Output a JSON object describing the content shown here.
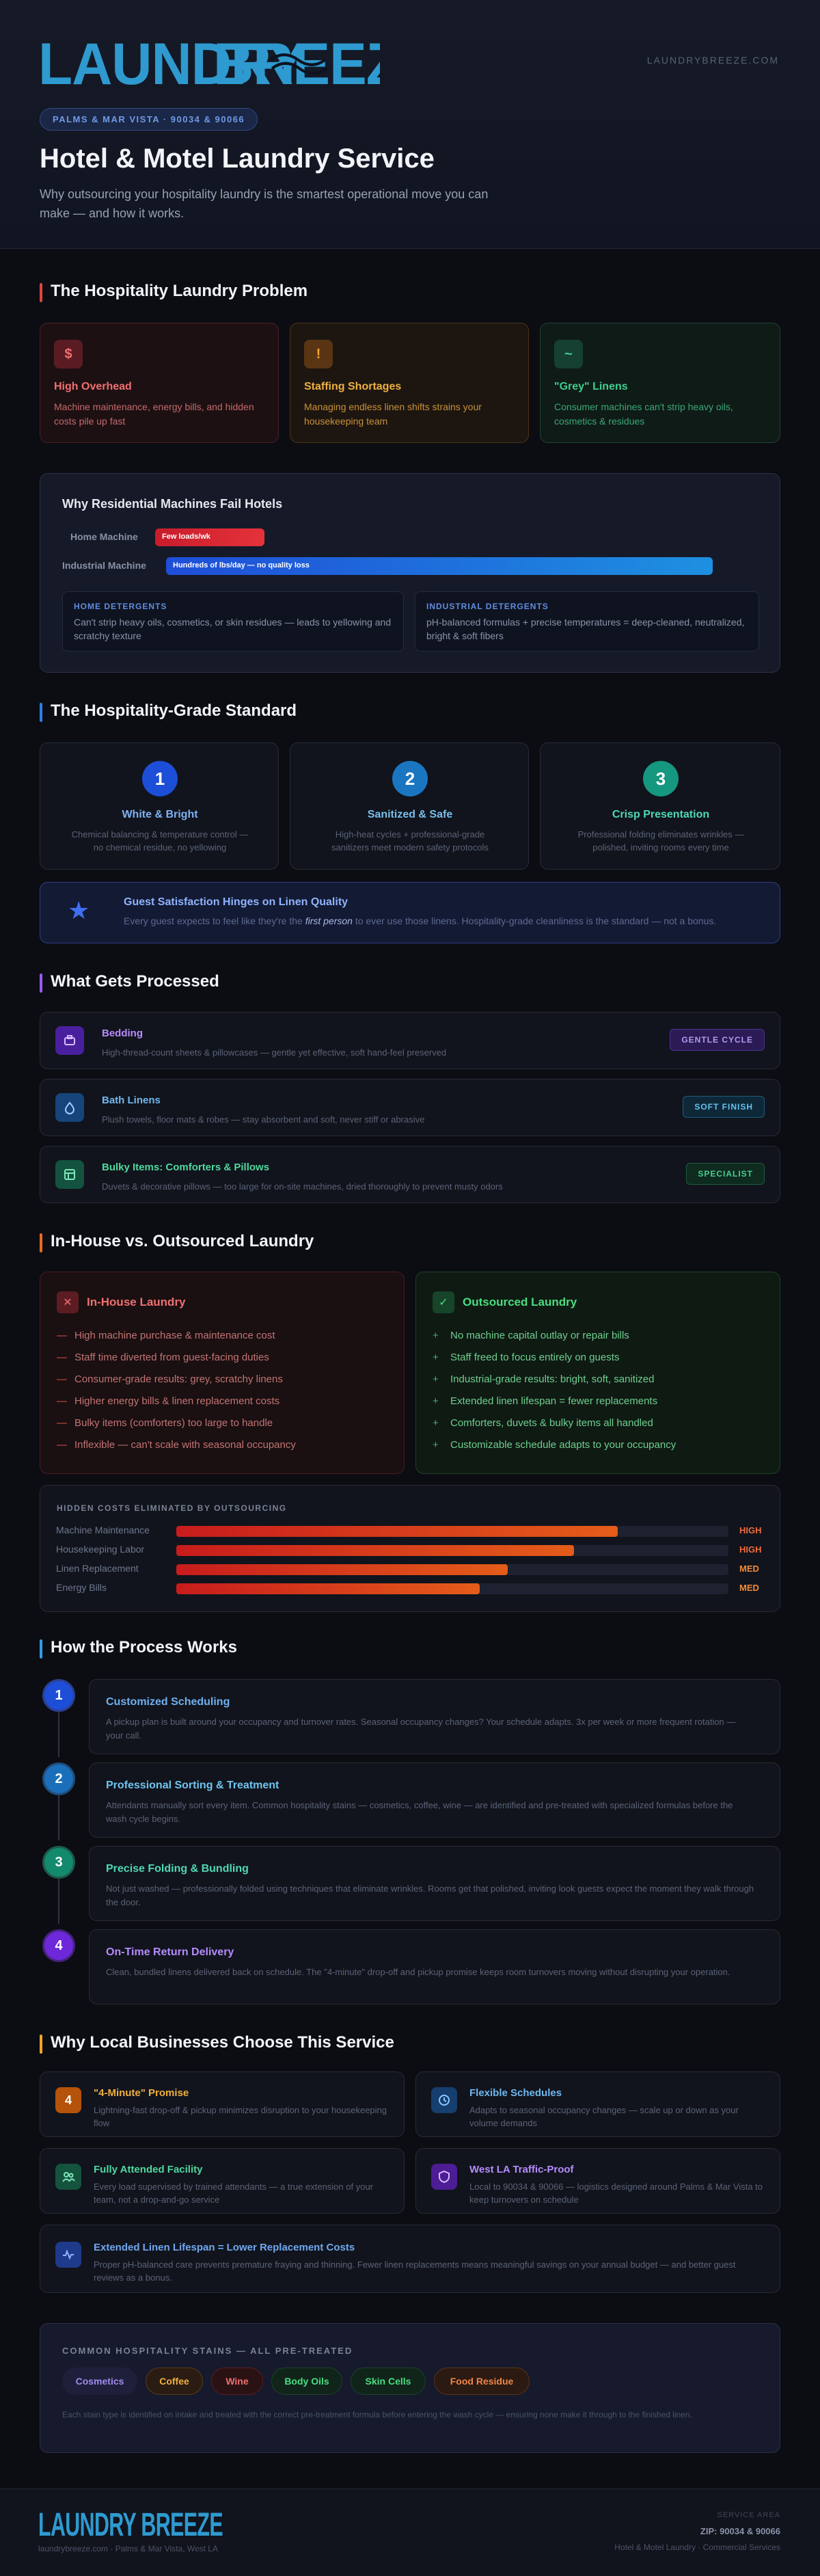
{
  "brand": {
    "logo_text": "LAUNDRY BREEZE",
    "url": "LAUNDRYBREEZE.COM"
  },
  "hero": {
    "badge": "PALMS & MAR VISTA · 90034 & 90066",
    "title": "Hotel & Motel Laundry Service",
    "intro": "Why outsourcing your hospitality laundry is the smartest operational move you can make — and how it works."
  },
  "problem": {
    "heading": "The Hospitality Laundry Problem",
    "cards": [
      {
        "icon": "$",
        "icon_name": "dollar-icon",
        "title": "High Overhead",
        "desc": "Machine maintenance, energy bills, and hidden costs pile up fast",
        "color": "#e05252"
      },
      {
        "icon": "!",
        "icon_name": "alert-icon",
        "title": "Staffing Shortages",
        "desc": "Managing endless linen shifts strains your housekeeping team",
        "color": "#f0a52a"
      },
      {
        "icon": "~",
        "icon_name": "wave-icon",
        "title": "\"Grey\" Linens",
        "desc": "Consumer machines can't strip heavy oils, cosmetics & residues",
        "color": "#3ecf8e"
      }
    ]
  },
  "machines": {
    "heading": "Why Residential Machines Fail Hotels",
    "rows": [
      {
        "label": "Home Machine",
        "bar_text": "Few loads/wk",
        "fill": 0.2
      },
      {
        "label": "Industrial Machine",
        "bar_text": "Hundreds of lbs/day — no quality loss",
        "fill": 1.0
      }
    ],
    "boxes": [
      {
        "title": "HOME DETERGENTS",
        "desc": "Can't strip heavy oils, cosmetics, or skin residues — leads to yellowing and scratchy texture"
      },
      {
        "title": "INDUSTRIAL DETERGENTS",
        "desc": "pH-balanced formulas + precise temperatures = deep-cleaned, neutralized, bright & soft fibers"
      }
    ]
  },
  "standard": {
    "heading": "The Hospitality-Grade Standard",
    "cards": [
      {
        "num": "1",
        "title": "White & Bright",
        "desc": "Chemical balancing & temperature control — no chemical residue, no yellowing"
      },
      {
        "num": "2",
        "title": "Sanitized & Safe",
        "desc": "High-heat cycles + professional-grade sanitizers meet modern safety protocols"
      },
      {
        "num": "3",
        "title": "Crisp Presentation",
        "desc": "Professional folding eliminates wrinkles — polished, inviting rooms every time"
      }
    ],
    "banner_title": "Guest Satisfaction Hinges on Linen Quality",
    "banner_pre": "Every guest expects to feel like they're the ",
    "banner_em": "first person",
    "banner_post": " to ever use those linens. Hospitality-grade cleanliness is the standard — not a bonus."
  },
  "processed": {
    "heading": "What Gets Processed",
    "items": [
      {
        "title": "Bedding",
        "desc": "High-thread-count sheets & pillowcases — gentle yet effective, soft hand-feel preserved",
        "tag": "GENTLE CYCLE"
      },
      {
        "title": "Bath Linens",
        "desc": "Plush towels, floor mats & robes — stay absorbent and soft, never stiff or abrasive",
        "tag": "SOFT FINISH"
      },
      {
        "title": "Bulky Items: Comforters & Pillows",
        "desc": "Duvets & decorative pillows — too large for on-site machines, dried thoroughly to prevent musty odors",
        "tag": "SPECIALIST"
      }
    ]
  },
  "compare": {
    "heading": "In-House vs. Outsourced Laundry",
    "inhouse_title": "In-House Laundry",
    "inhouse_icon": "✕",
    "inhouse": [
      "High machine purchase & maintenance cost",
      "Staff time diverted from guest-facing duties",
      "Consumer-grade results: grey, scratchy linens",
      "Higher energy bills & linen replacement costs",
      "Bulky items (comforters) too large to handle",
      "Inflexible — can't scale with seasonal occupancy"
    ],
    "outsourced_title": "Outsourced Laundry",
    "outsourced_icon": "✓",
    "outsourced": [
      "No machine capital outlay or repair bills",
      "Staff freed to focus entirely on guests",
      "Industrial-grade results: bright, soft, sanitized",
      "Extended linen lifespan = fewer replacements",
      "Comforters, duvets & bulky items all handled",
      "Customizable schedule adapts to your occupancy"
    ],
    "hidden_heading": "HIDDEN COSTS ELIMINATED BY OUTSOURCING",
    "hidden": [
      {
        "label": "Machine Maintenance",
        "level": "HIGH",
        "fill": 0.8
      },
      {
        "label": "Housekeeping Labor",
        "level": "HIGH",
        "fill": 0.72
      },
      {
        "label": "Linen Replacement",
        "level": "MED",
        "fill": 0.6
      },
      {
        "label": "Energy Bills",
        "level": "MED",
        "fill": 0.55
      }
    ]
  },
  "process": {
    "heading": "How the Process Works",
    "steps": [
      {
        "num": "1",
        "title": "Customized Scheduling",
        "desc": "A pickup plan is built around your occupancy and turnover rates. Seasonal occupancy changes? Your schedule adapts. 3x per week or more frequent rotation — your call."
      },
      {
        "num": "2",
        "title": "Professional Sorting & Treatment",
        "desc": "Attendants manually sort every item. Common hospitality stains — cosmetics, coffee, wine — are identified and pre-treated with specialized formulas before the wash cycle begins."
      },
      {
        "num": "3",
        "title": "Precise Folding & Bundling",
        "desc": "Not just washed — professionally folded using techniques that eliminate wrinkles. Rooms get that polished, inviting look guests expect the moment they walk through the door."
      },
      {
        "num": "4",
        "title": "On-Time Return Delivery",
        "desc": "Clean, bundled linens delivered back on schedule. The \"4-minute\" drop-off and pickup promise keeps room turnovers moving without disrupting your operation."
      }
    ]
  },
  "why": {
    "heading": "Why Local Businesses Choose This Service",
    "cards": [
      {
        "icon": "4",
        "title": "\"4-Minute\" Promise",
        "desc": "Lightning-fast drop-off & pickup minimizes disruption to your housekeeping flow"
      },
      {
        "icon": "clock",
        "title": "Flexible Schedules",
        "desc": "Adapts to seasonal occupancy changes — scale up or down as your volume demands"
      },
      {
        "icon": "people",
        "title": "Fully Attended Facility",
        "desc": "Every load supervised by trained attendants — a true extension of your team, not a drop-and-go service"
      },
      {
        "icon": "shield",
        "title": "West LA Traffic-Proof",
        "desc": "Local to 90034 & 90066 — logistics designed around Palms & Mar Vista to keep turnovers on schedule"
      }
    ],
    "wide_title": "Extended Linen Lifespan = Lower Replacement Costs",
    "wide_desc": "Proper pH-balanced care prevents premature fraying and thinning. Fewer linen replacements means meaningful savings on your annual budget — and better guest reviews as a bonus."
  },
  "stains": {
    "heading": "COMMON HOSPITALITY STAINS — ALL PRE-TREATED",
    "chips": [
      "Cosmetics",
      "Coffee",
      "Wine",
      "Body Oils",
      "Skin Cells",
      "Food Residue"
    ],
    "note": "Each stain type is identified on intake and treated with the correct pre-treatment formula before entering the wash cycle — ensuring none make it through to the finished linen."
  },
  "footer": {
    "logo_text": "LAUNDRY BREEZE",
    "sub": "laundrybreeze.com · Palms & Mar Vista, West LA",
    "right_top": "SERVICE AREA",
    "zip": "ZIP: 90034 & 90066",
    "right_bottom": "Hotel & Motel Laundry · Commercial Services"
  },
  "colors": {
    "accent_blue": "#2e9ad0",
    "red": "#e05252",
    "amber": "#f0a52a",
    "green": "#3ecf8e",
    "purple": "#a56bf0"
  }
}
